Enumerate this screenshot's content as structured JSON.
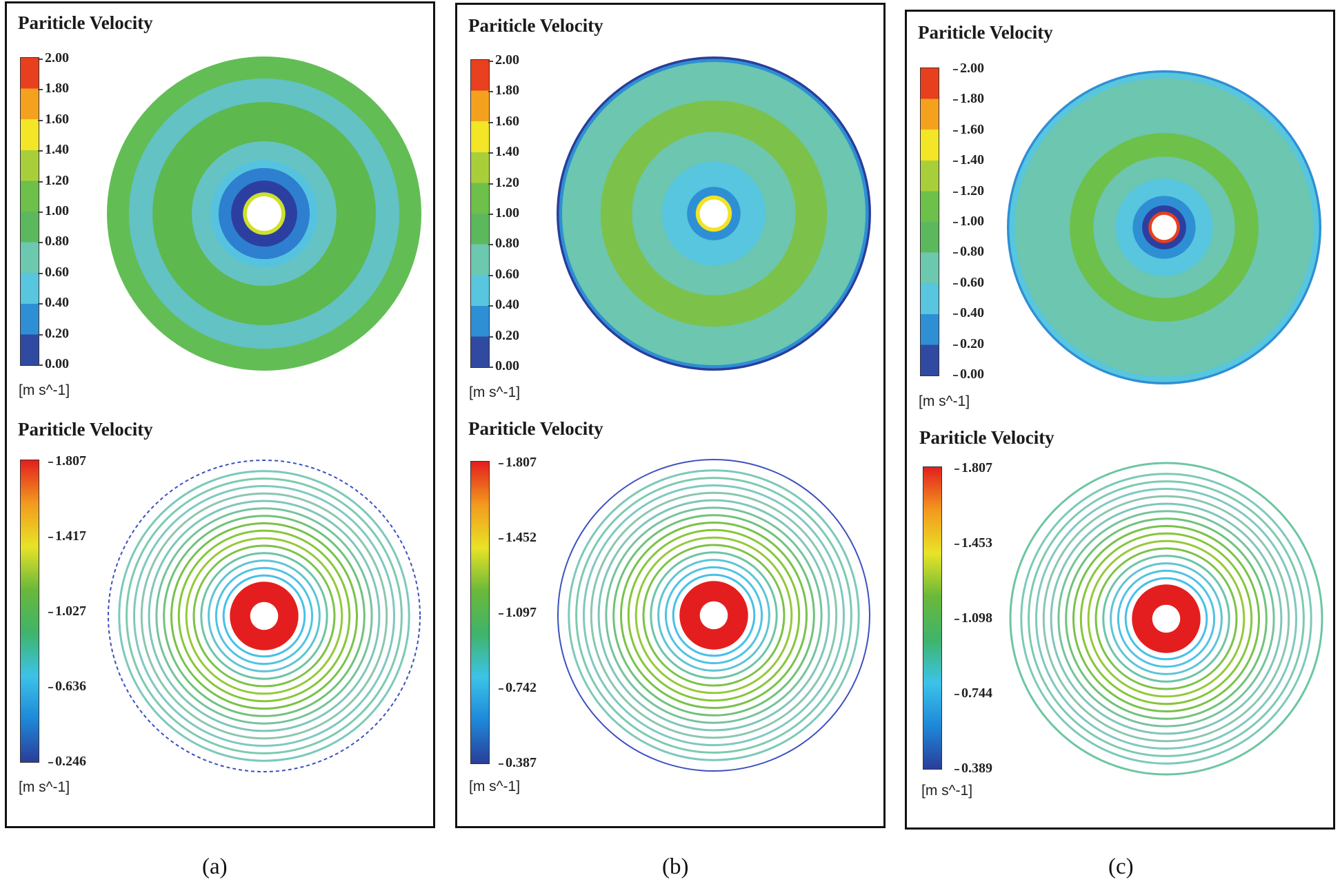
{
  "figure": {
    "captions": [
      "(a)",
      "(b)",
      "(c)"
    ]
  },
  "colors": {
    "discrete_scale": [
      "#2f4aa0",
      "#2e8fd4",
      "#57c6de",
      "#6dc8b0",
      "#5cb85c",
      "#6dc04a",
      "#a8cf3a",
      "#f2e626",
      "#f4a21e",
      "#e8401e"
    ],
    "continuous_scale": [
      "#2a3d9a",
      "#1e88d8",
      "#3cc3e8",
      "#3fb46a",
      "#6ab83a",
      "#e8e326",
      "#f29a1e",
      "#e41e1e"
    ],
    "panel_border": "#111111"
  },
  "panels": [
    {
      "id": "a",
      "contour": {
        "title": "Pariticle Velocity",
        "ticks": [
          "2.00",
          "1.80",
          "1.60",
          "1.40",
          "1.20",
          "1.00",
          "0.80",
          "0.60",
          "0.40",
          "0.20",
          "0.00"
        ],
        "unit": "[m s^-1]",
        "bands": [
          {
            "r": 1.0,
            "color": "#62bd55"
          },
          {
            "r": 0.86,
            "color": "#62c2c4"
          },
          {
            "r": 0.71,
            "color": "#5db84e"
          },
          {
            "r": 0.46,
            "color": "#66c3c3"
          },
          {
            "r": 0.34,
            "color": "#55c3e0"
          },
          {
            "r": 0.29,
            "color": "#2e7fd0"
          },
          {
            "r": 0.21,
            "color": "#2c3fa0"
          },
          {
            "r": 0.135,
            "color": "#cfe02a"
          },
          {
            "r": 0.11,
            "color": "#ffffff"
          }
        ]
      },
      "streamline": {
        "title": "Pariticle Velocity",
        "ticks": [
          "1.807",
          "1.417",
          "1.027",
          "0.636",
          "0.246"
        ],
        "unit": "[m s^-1]",
        "outer_ring": "dashed-blue"
      }
    },
    {
      "id": "b",
      "contour": {
        "title": "Pariticle Velocity",
        "ticks": [
          "2.00",
          "1.80",
          "1.60",
          "1.40",
          "1.20",
          "1.00",
          "0.80",
          "0.60",
          "0.40",
          "0.20",
          "0.00"
        ],
        "unit": "[m s^-1]",
        "bands": [
          {
            "r": 1.0,
            "color": "#2a3d9a"
          },
          {
            "r": 0.985,
            "color": "#2e8fd4"
          },
          {
            "r": 0.965,
            "color": "#6cc6b0"
          },
          {
            "r": 0.72,
            "color": "#7cc24a"
          },
          {
            "r": 0.52,
            "color": "#6cc6b0"
          },
          {
            "r": 0.33,
            "color": "#57c6de"
          },
          {
            "r": 0.17,
            "color": "#2e8fd4"
          },
          {
            "r": 0.115,
            "color": "#f0e326"
          },
          {
            "r": 0.09,
            "color": "#ffffff"
          }
        ]
      },
      "streamline": {
        "title": "Pariticle Velocity",
        "ticks": [
          "1.807",
          "1.452",
          "1.097",
          "0.742",
          "0.387"
        ],
        "unit": "[m s^-1]",
        "outer_ring": "solid-blue"
      }
    },
    {
      "id": "c",
      "contour": {
        "title": "Pariticle Velocity",
        "ticks": [
          "2.00",
          "1.80",
          "1.60",
          "1.40",
          "1.20",
          "1.00",
          "0.80",
          "0.60",
          "0.40",
          "0.20",
          "0.00"
        ],
        "unit": "[m s^-1]",
        "bands": [
          {
            "r": 1.0,
            "color": "#2e8fd4"
          },
          {
            "r": 0.985,
            "color": "#57c6de"
          },
          {
            "r": 0.95,
            "color": "#6cc6b0"
          },
          {
            "r": 0.6,
            "color": "#6dc04a"
          },
          {
            "r": 0.45,
            "color": "#6cc6b0"
          },
          {
            "r": 0.31,
            "color": "#57c6de"
          },
          {
            "r": 0.2,
            "color": "#2e8fd4"
          },
          {
            "r": 0.14,
            "color": "#2c3fa0"
          },
          {
            "r": 0.1,
            "color": "#e8401e"
          },
          {
            "r": 0.08,
            "color": "#ffffff"
          }
        ]
      },
      "streamline": {
        "title": "Pariticle Velocity",
        "ticks": [
          "1.807",
          "1.453",
          "1.098",
          "0.744",
          "0.389"
        ],
        "unit": "[m s^-1]",
        "outer_ring": "none"
      }
    }
  ]
}
